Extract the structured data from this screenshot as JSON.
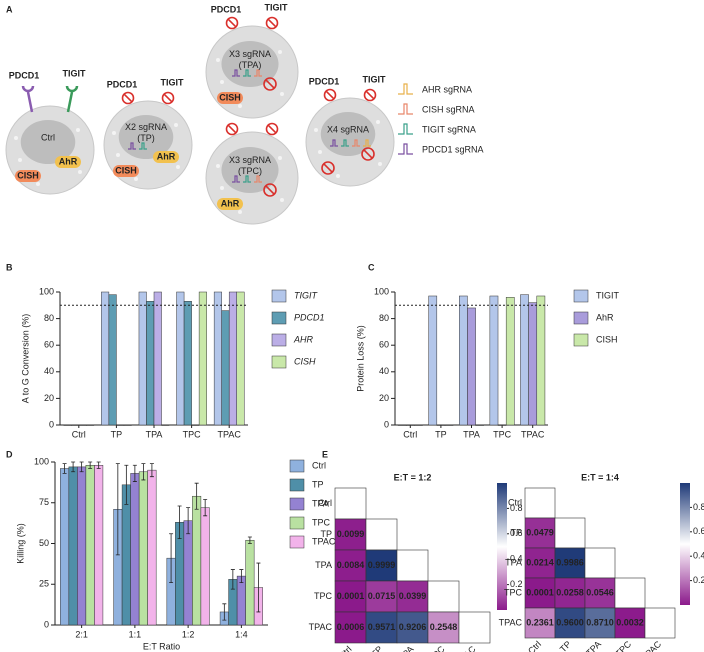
{
  "diagram": {
    "panel_label": "A",
    "cells": [
      {
        "label": [
          "Ctrl"
        ],
        "receptors": [
          "PDCD1",
          "TIGIT"
        ],
        "proteins": [
          {
            "name": "CISH",
            "color": "#f28b5b"
          },
          {
            "name": "AhR",
            "color": "#f2c14e"
          }
        ]
      },
      {
        "label": [
          "X2 sgRNA",
          "(TP)"
        ],
        "receptors": [
          "PDCD1",
          "TIGIT"
        ],
        "proteins": [
          {
            "name": "CISH",
            "color": "#f28b5b"
          },
          {
            "name": "AhR",
            "color": "#f2c14e"
          }
        ]
      },
      {
        "label": [
          "X3 sgRNA",
          "(TPA)"
        ],
        "receptors": [
          "PDCD1",
          "TIGIT"
        ],
        "proteins": [
          {
            "name": "CISH",
            "color": "#f28b5b"
          }
        ]
      },
      {
        "label": [
          "X3 sgRNA",
          "(TPC)"
        ],
        "receptors": [],
        "proteins": [
          {
            "name": "AhR",
            "color": "#f2c14e"
          }
        ]
      },
      {
        "label": [
          "X4 sgRNA"
        ],
        "receptors": [
          "PDCD1",
          "TIGIT"
        ],
        "proteins": []
      }
    ],
    "legend": [
      {
        "label": "AHR sgRNA",
        "color": "#e8b04a"
      },
      {
        "label": "CISH sgRNA",
        "color": "#e8866a"
      },
      {
        "label": "TIGIT sgRNA",
        "color": "#3aa08a"
      },
      {
        "label": "PDCD1 sgRNA",
        "color": "#7a4fa0"
      }
    ]
  },
  "chart_data": [
    {
      "type": "bar",
      "panel_label": "B",
      "ylabel": "A to G Conversion (%)",
      "categories": [
        "Ctrl",
        "TP",
        "TPA",
        "TPC",
        "TPAC"
      ],
      "series": [
        {
          "name": "TIGIT",
          "color": "#b3c6ea",
          "values": [
            0,
            100,
            100,
            100,
            100
          ]
        },
        {
          "name": "PDCD1",
          "color": "#5e9db3",
          "values": [
            0,
            98,
            93,
            93,
            86
          ]
        },
        {
          "name": "AHR",
          "color": "#bbaee6",
          "values": [
            0,
            0,
            100,
            0,
            100
          ]
        },
        {
          "name": "CISH",
          "color": "#c9e8a9",
          "values": [
            0,
            0,
            0,
            100,
            100
          ]
        }
      ],
      "ylim": [
        0,
        100
      ],
      "yticks": [
        0,
        20,
        40,
        60,
        80,
        100
      ],
      "reference_line": 90,
      "legend_italic": true
    },
    {
      "type": "bar",
      "panel_label": "C",
      "ylabel": "Protein Loss (%)",
      "categories": [
        "Ctrl",
        "TP",
        "TPA",
        "TPC",
        "TPAC"
      ],
      "series": [
        {
          "name": "TIGIT",
          "color": "#b3c6ea",
          "values": [
            0,
            97,
            97,
            97,
            98
          ]
        },
        {
          "name": "AhR",
          "color": "#a99cdb",
          "values": [
            0,
            0,
            88,
            0,
            92
          ]
        },
        {
          "name": "CISH",
          "color": "#c9e8a9",
          "values": [
            0,
            0,
            0,
            96,
            97
          ]
        }
      ],
      "ylim": [
        0,
        100
      ],
      "yticks": [
        0,
        20,
        40,
        60,
        80,
        100
      ],
      "reference_line": 90,
      "legend_italic": false
    },
    {
      "type": "bar",
      "panel_label": "D",
      "ylabel": "Killing (%)",
      "xlabel": "E:T Ratio",
      "categories": [
        "2:1",
        "1:1",
        "1:2",
        "1:4"
      ],
      "series": [
        {
          "name": "Ctrl",
          "color": "#8fb1de",
          "values": [
            96,
            71,
            41,
            8
          ],
          "errors": [
            3,
            28,
            15,
            5
          ]
        },
        {
          "name": "TP",
          "color": "#4f8fa8",
          "values": [
            97,
            86,
            63,
            28
          ],
          "errors": [
            3,
            12,
            10,
            6
          ]
        },
        {
          "name": "TPA",
          "color": "#9482d2",
          "values": [
            97,
            93,
            64,
            30
          ],
          "errors": [
            3,
            5,
            8,
            4
          ]
        },
        {
          "name": "TPC",
          "color": "#b9e1a1",
          "values": [
            98,
            94,
            79,
            52
          ],
          "errors": [
            2,
            5,
            8,
            2
          ]
        },
        {
          "name": "TPAC",
          "color": "#f2b3ea",
          "values": [
            98,
            95,
            72,
            23
          ],
          "errors": [
            2,
            4,
            5,
            15
          ]
        }
      ],
      "ylim": [
        0,
        100
      ],
      "yticks": [
        0,
        25,
        50,
        75,
        100
      ],
      "legend_italic": false
    },
    {
      "type": "heatmap",
      "panel_label": "E",
      "title": "E:T = 1:2",
      "labels": [
        "Ctrl",
        "TP",
        "TPA",
        "TPC",
        "TPAC"
      ],
      "values": [
        [
          null,
          null,
          null,
          null,
          null
        ],
        [
          0.0099,
          null,
          null,
          null,
          null
        ],
        [
          0.0084,
          0.9999,
          null,
          null,
          null
        ],
        [
          0.0001,
          0.0715,
          0.0399,
          null,
          null
        ],
        [
          0.0006,
          0.9571,
          0.9206,
          0.2548,
          null
        ]
      ],
      "value_labels": [
        [
          null,
          null,
          null,
          null,
          null
        ],
        [
          "0.0099",
          null,
          null,
          null,
          null
        ],
        [
          "0.0084",
          "0.9999",
          null,
          null,
          null
        ],
        [
          "0.0001",
          "0.0715",
          "0.0399",
          null,
          null
        ],
        [
          "0.0006",
          "0.9571",
          "0.9206",
          "0.2548",
          null
        ]
      ],
      "clim": [
        0,
        1
      ],
      "cticks": [
        0.2,
        0.4,
        0.6,
        0.8
      ],
      "colormap": [
        "#8b1a8b",
        "#ffffff",
        "#1f3a78"
      ]
    },
    {
      "type": "heatmap",
      "title": "E:T = 1:4",
      "labels": [
        "Ctrl",
        "TP",
        "TPA",
        "TPC",
        "TPAC"
      ],
      "values": [
        [
          null,
          null,
          null,
          null,
          null
        ],
        [
          0.0479,
          null,
          null,
          null,
          null
        ],
        [
          0.0214,
          0.9986,
          null,
          null,
          null
        ],
        [
          0.0001,
          0.0258,
          0.0546,
          null,
          null
        ],
        [
          0.2361,
          0.96,
          0.871,
          0.0032,
          null
        ]
      ],
      "value_labels": [
        [
          null,
          null,
          null,
          null,
          null
        ],
        [
          "0.0479",
          null,
          null,
          null,
          null
        ],
        [
          "0.0214",
          "0.9986",
          null,
          null,
          null
        ],
        [
          "0.0001",
          "0.0258",
          "0.0546",
          null,
          null
        ],
        [
          "0.2361",
          "0.9600",
          "0.8710",
          "0.0032",
          null
        ]
      ],
      "clim": [
        0,
        1
      ],
      "cticks": [
        0.2,
        0.4,
        0.6,
        0.8
      ],
      "colormap": [
        "#8b1a8b",
        "#ffffff",
        "#1f3a78"
      ]
    }
  ]
}
